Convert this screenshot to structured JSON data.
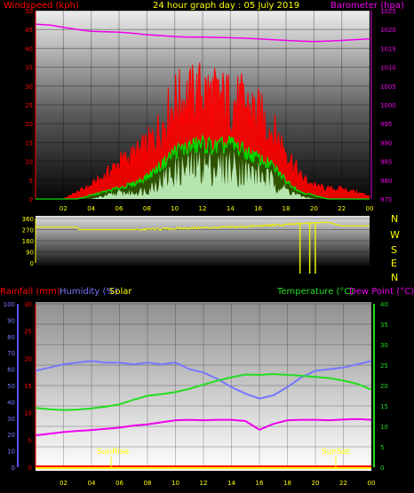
{
  "header": {
    "windspeed_label": "Windspeed (kph)",
    "title": "24 hour graph day : 05 July 2019",
    "barometer_label": "Barometer (hpa)"
  },
  "middle": {
    "direction_labels": [
      "N",
      "W",
      "S",
      "E",
      "N"
    ]
  },
  "bottom": {
    "rainfall_label": "Rainfall (mm)",
    "humidity_label": "Humidity (%)",
    "solar_label": "Solar",
    "temperature_label": "Temperature (°C)",
    "dewpoint_label": "Dew Point (°C)",
    "sunrise_label": "SunRise",
    "sunset_label": "SunSet"
  },
  "colors": {
    "wind": "#ff0000",
    "gust_avg": "#00dd00",
    "wind_low": "#ccffcc",
    "barometer": "#ee00ee",
    "direction": "#eeee00",
    "humidity": "#7777ff",
    "temperature": "#22dd22",
    "dewpoint": "#ee00ee",
    "rainfall": "#ff0000",
    "solar": "#ffff00"
  },
  "chart_data": [
    {
      "type": "area",
      "title": "24 hour graph day : 05 July 2019",
      "x_ticks": [
        "02",
        "04",
        "06",
        "08",
        "10",
        "12",
        "14",
        "16",
        "18",
        "20",
        "22",
        "00"
      ],
      "y_left_label": "Windspeed (kph)",
      "y_left_ticks": [
        0,
        5,
        10,
        15,
        20,
        25,
        30,
        35,
        40,
        45,
        50
      ],
      "y_left_range": [
        0,
        50
      ],
      "y_right_label": "Barometer (hpa)",
      "y_right_ticks": [
        975,
        980,
        985,
        990,
        995,
        1000,
        1005,
        1010,
        1015,
        1020,
        1025
      ],
      "y_right_range": [
        975,
        1025
      ],
      "series": [
        {
          "name": "Barometer (hpa)",
          "axis": "right",
          "x": [
            0,
            1,
            2,
            3,
            4,
            5,
            6,
            7,
            8,
            9,
            10,
            11,
            12,
            13,
            14,
            15,
            16,
            17,
            18,
            19,
            20,
            21,
            22,
            23,
            24
          ],
          "values": [
            1021.4,
            1021.2,
            1020.6,
            1020.0,
            1019.5,
            1019.4,
            1019.3,
            1019.0,
            1018.6,
            1018.4,
            1018.1,
            1018.0,
            1018.0,
            1017.9,
            1017.8,
            1017.7,
            1017.5,
            1017.3,
            1017.1,
            1016.9,
            1016.8,
            1016.9,
            1017.1,
            1017.3,
            1017.5
          ]
        },
        {
          "name": "Wind gust",
          "axis": "left",
          "x": [
            0,
            1,
            2,
            3,
            4,
            5,
            6,
            7,
            8,
            9,
            10,
            11,
            12,
            13,
            14,
            15,
            16,
            17,
            18,
            19,
            20,
            21,
            22,
            23,
            24
          ],
          "values": [
            0,
            0,
            0,
            2,
            4,
            7,
            11,
            13,
            16,
            22,
            30,
            31,
            33,
            31,
            30,
            29,
            26,
            21,
            15,
            7,
            4,
            3,
            3,
            2,
            1
          ]
        },
        {
          "name": "Wind average",
          "axis": "left",
          "x": [
            0,
            1,
            2,
            3,
            4,
            5,
            6,
            7,
            8,
            9,
            10,
            11,
            12,
            13,
            14,
            15,
            16,
            17,
            18,
            19,
            20,
            21,
            22,
            23,
            24
          ],
          "values": [
            0,
            0,
            0,
            0,
            1,
            2,
            3,
            4,
            6,
            9,
            13,
            14,
            15,
            14,
            15,
            13,
            11,
            9,
            5,
            2,
            1,
            0,
            0,
            0,
            0
          ]
        },
        {
          "name": "Wind speed",
          "axis": "left",
          "x": [
            0,
            1,
            2,
            3,
            4,
            5,
            6,
            7,
            8,
            9,
            10,
            11,
            12,
            13,
            14,
            15,
            16,
            17,
            18,
            19,
            20,
            21,
            22,
            23,
            24
          ],
          "values": [
            0,
            0,
            0,
            0,
            0,
            1,
            2,
            2,
            3,
            6,
            9,
            10,
            11,
            10,
            11,
            9,
            8,
            6,
            3,
            1,
            0,
            0,
            0,
            0,
            0
          ]
        }
      ]
    },
    {
      "type": "line",
      "y_ticks": [
        0,
        90,
        180,
        270,
        360
      ],
      "y_range": [
        0,
        360
      ],
      "series": [
        {
          "name": "Wind direction",
          "x": [
            0,
            3,
            3.1,
            6,
            8,
            10,
            12,
            14,
            16,
            18,
            20,
            21,
            22,
            24
          ],
          "values": [
            290,
            290,
            270,
            270,
            272,
            278,
            285,
            290,
            300,
            310,
            325,
            330,
            300,
            300
          ]
        }
      ]
    },
    {
      "type": "line",
      "x_ticks": [
        "02",
        "04",
        "06",
        "08",
        "10",
        "12",
        "14",
        "16",
        "18",
        "20",
        "22",
        "00"
      ],
      "y_left_label": "Humidity (%)",
      "y_left_ticks": [
        0,
        10,
        20,
        30,
        40,
        50,
        60,
        70,
        80,
        90,
        100
      ],
      "y_left_range": [
        0,
        100
      ],
      "y_rain_label": "Rainfall (mm)",
      "y_rain_ticks": [
        0,
        5,
        10,
        15,
        20,
        25,
        30
      ],
      "y_rain_range": [
        0,
        30
      ],
      "y_right_label": "Temperature (°C)",
      "y_right_ticks": [
        0,
        5,
        10,
        15,
        20,
        25,
        30,
        35,
        40
      ],
      "y_right_range": [
        0,
        40
      ],
      "annotations": [
        {
          "text": "SunRise",
          "x": 5.0
        },
        {
          "text": "SunSet",
          "x": 20.5
        }
      ],
      "series": [
        {
          "name": "Humidity (%)",
          "axis": "left",
          "x": [
            0,
            1,
            2,
            3,
            4,
            5,
            6,
            7,
            8,
            9,
            10,
            11,
            12,
            13,
            14,
            15,
            16,
            17,
            18,
            19,
            20,
            21,
            22,
            23,
            24
          ],
          "values": [
            59,
            61,
            63,
            64,
            65,
            64,
            64,
            63,
            64,
            63,
            64,
            60,
            58,
            54,
            49,
            45,
            42,
            44,
            49,
            55,
            59,
            60,
            61,
            63,
            65
          ]
        },
        {
          "name": "Temperature (°C)",
          "axis": "right",
          "x": [
            0,
            1,
            2,
            3,
            4,
            5,
            6,
            7,
            8,
            9,
            10,
            11,
            12,
            13,
            14,
            15,
            16,
            17,
            18,
            19,
            20,
            21,
            22,
            23,
            24
          ],
          "values": [
            14.5,
            14.2,
            14.0,
            14.1,
            14.4,
            14.8,
            15.4,
            16.5,
            17.5,
            17.9,
            18.4,
            19.2,
            20.2,
            21.2,
            22.0,
            22.7,
            22.6,
            22.8,
            22.6,
            22.4,
            22.1,
            21.8,
            21.2,
            20.4,
            19.0
          ]
        },
        {
          "name": "Dew Point (°C)",
          "axis": "right",
          "x": [
            0,
            1,
            2,
            3,
            4,
            5,
            6,
            7,
            8,
            9,
            10,
            11,
            12,
            13,
            14,
            15,
            16,
            17,
            18,
            19,
            20,
            21,
            22,
            23,
            24
          ],
          "values": [
            7.8,
            8.2,
            8.6,
            8.9,
            9.1,
            9.4,
            9.7,
            10.2,
            10.5,
            11.0,
            11.5,
            11.6,
            11.5,
            11.6,
            11.6,
            11.3,
            9.2,
            10.6,
            11.5,
            11.6,
            11.6,
            11.5,
            11.7,
            11.8,
            11.6
          ]
        },
        {
          "name": "Rainfall (mm)",
          "axis": "rain",
          "x": [
            0,
            24
          ],
          "values": [
            0,
            0
          ]
        },
        {
          "name": "Solar",
          "axis": "none",
          "x": [
            0,
            24
          ],
          "values": [
            0,
            0
          ]
        }
      ]
    }
  ]
}
